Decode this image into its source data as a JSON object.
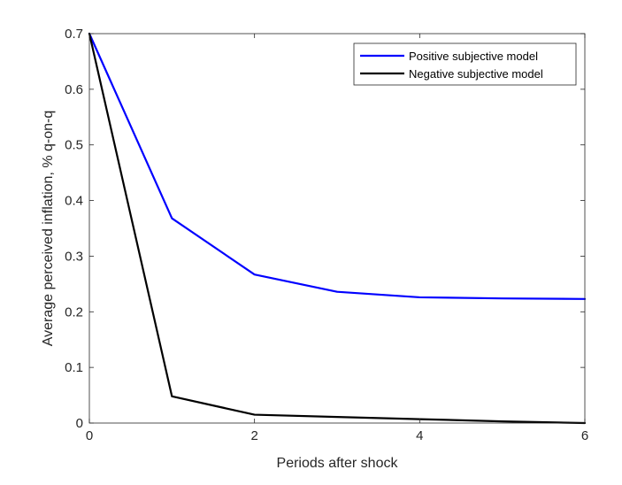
{
  "chart_data": {
    "type": "line",
    "title": "",
    "xlabel": "Periods after shock",
    "ylabel": "Average perceived inflation, % q-on-q",
    "xlim": [
      0,
      6
    ],
    "ylim": [
      0,
      0.7
    ],
    "x_ticks": [
      0,
      2,
      4,
      6
    ],
    "y_ticks": [
      0,
      0.1,
      0.2,
      0.3,
      0.4,
      0.5,
      0.6,
      0.7
    ],
    "x_tick_labels": [
      "0",
      "2",
      "4",
      "6"
    ],
    "y_tick_labels": [
      "0",
      "0.1",
      "0.2",
      "0.3",
      "0.4",
      "0.5",
      "0.6",
      "0.7"
    ],
    "grid": false,
    "legend_position": "top-right",
    "series": [
      {
        "name": "Positive subjective model",
        "color": "#0000ff",
        "x": [
          0,
          1,
          2,
          3,
          4,
          5,
          6
        ],
        "y": [
          0.7,
          0.368,
          0.267,
          0.236,
          0.226,
          0.224,
          0.223
        ]
      },
      {
        "name": "Negative subjective model",
        "color": "#000000",
        "x": [
          0,
          1,
          2,
          3,
          4,
          5,
          6
        ],
        "y": [
          0.7,
          0.048,
          0.015,
          0.011,
          0.007,
          0.003,
          0.0
        ]
      }
    ]
  }
}
